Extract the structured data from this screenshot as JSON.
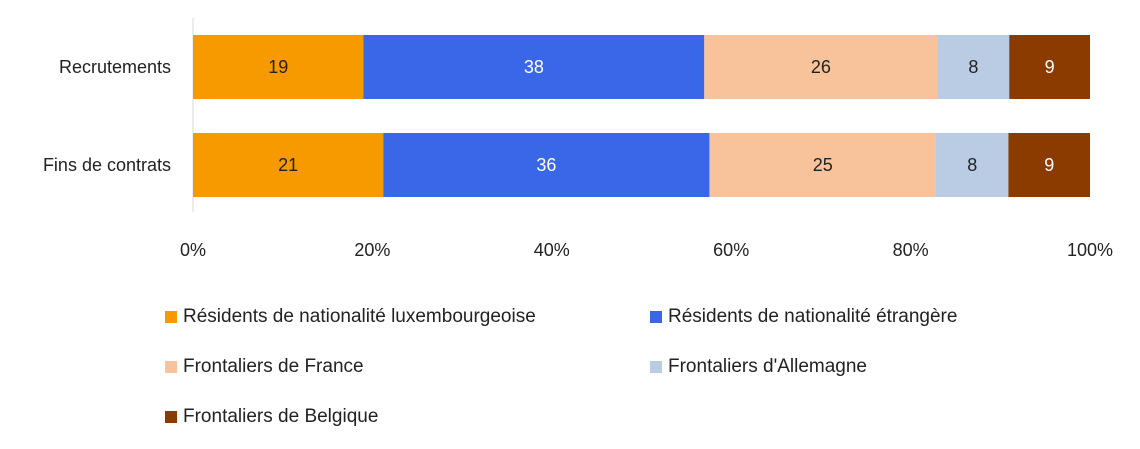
{
  "chart_data": {
    "type": "bar",
    "orientation": "horizontal",
    "stacked": true,
    "categories": [
      "Recrutements",
      "Fins de contrats"
    ],
    "series": [
      {
        "name": "Résidents de nationalité luxembourgeoise",
        "color": "#F79A00",
        "label_color": "#222222",
        "values": [
          19,
          21
        ]
      },
      {
        "name": "Résidents de nationalité étrangère",
        "color": "#3A66E8",
        "label_color": "#ffffff",
        "values": [
          38,
          36
        ]
      },
      {
        "name": "Frontaliers de France",
        "color": "#F8C39A",
        "label_color": "#222222",
        "values": [
          26,
          25
        ]
      },
      {
        "name": "Frontaliers d'Allemagne",
        "color": "#B9CCE4",
        "label_color": "#222222",
        "values": [
          8,
          8
        ]
      },
      {
        "name": "Frontaliers de Belgique",
        "color": "#8B3A00",
        "label_color": "#ffffff",
        "values": [
          9,
          9
        ]
      }
    ],
    "xlim": [
      0,
      100
    ],
    "xticks": [
      "0%",
      "20%",
      "40%",
      "60%",
      "80%",
      "100%"
    ],
    "xlabel": "",
    "ylabel": "",
    "title": "",
    "grid": false,
    "legend_position": "bottom"
  }
}
